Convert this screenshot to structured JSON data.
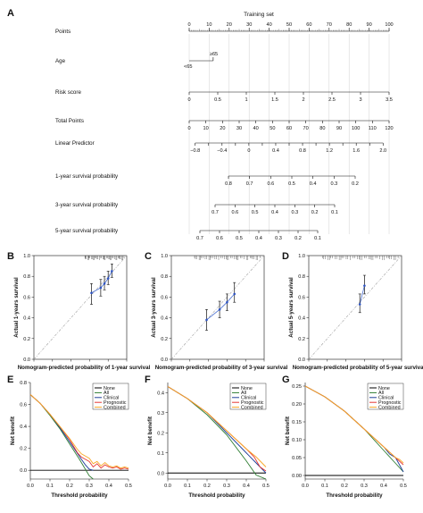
{
  "panels": [
    "A",
    "B",
    "C",
    "D",
    "E",
    "F",
    "G"
  ],
  "chart_data": [
    {
      "panel": "A",
      "type": "nomogram",
      "title": "Training set",
      "rows": [
        {
          "label": "Points",
          "ticks": [
            0,
            10,
            20,
            30,
            40,
            50,
            60,
            70,
            80,
            90,
            100
          ],
          "range": [
            0,
            100
          ],
          "minor": 1
        },
        {
          "label": "Age",
          "categories": [
            {
              "name": "<65",
              "points": 0
            },
            {
              "name": "≥65",
              "points": 12
            }
          ]
        },
        {
          "label": "Risk score",
          "ticks": [
            0,
            0.5,
            1,
            1.5,
            2,
            2.5,
            3,
            3.5
          ],
          "range": [
            0,
            3.5
          ],
          "points_range": [
            0,
            100
          ]
        },
        {
          "label": "Total Points",
          "ticks": [
            0,
            10,
            20,
            30,
            40,
            50,
            60,
            70,
            80,
            90,
            100,
            110,
            120
          ],
          "range": [
            0,
            120
          ]
        },
        {
          "label": "Linear Predictor",
          "ticks": [
            -0.8,
            -0.6,
            -0.4,
            -0.2,
            0,
            0.2,
            0.4,
            0.6,
            0.8,
            1,
            1.2,
            1.4,
            1.6,
            1.8,
            2
          ],
          "tick_labels": [
            "−0.8",
            "",
            "−0.4",
            "",
            "0",
            "",
            "0.4",
            "",
            "0.8",
            "",
            "1.2",
            "",
            "1.6",
            "",
            "2.0"
          ],
          "range": [
            -0.8,
            2.0
          ]
        },
        {
          "label": "1-year survival probability",
          "ticks": [
            0.8,
            0.7,
            0.6,
            0.5,
            0.4,
            0.3,
            0.2
          ],
          "range": [
            0.8,
            0.2
          ]
        },
        {
          "label": "3-year survival probability",
          "ticks": [
            0.7,
            0.6,
            0.5,
            0.4,
            0.3,
            0.2,
            0.1
          ],
          "range": [
            0.7,
            0.1
          ]
        },
        {
          "label": "5-year survival probability",
          "ticks": [
            0.7,
            0.6,
            0.5,
            0.4,
            0.3,
            0.2,
            0.1
          ],
          "range": [
            0.7,
            0.1
          ]
        }
      ]
    },
    {
      "panel": "B",
      "type": "scatter",
      "xlabel": "Nomogram-predicted probability of 1-year survival",
      "ylabel": "Actual 1-years survival",
      "xlim": [
        0,
        1
      ],
      "ylim": [
        0,
        1
      ],
      "xticks": [
        0,
        0.2,
        0.4,
        0.6,
        0.8,
        1.0
      ],
      "yticks": [
        0,
        0.2,
        0.4,
        0.6,
        0.8,
        1.0
      ],
      "tick_labels": [
        "0.0",
        "0.2",
        "0.4",
        "0.6",
        "0.8",
        "1.0"
      ],
      "x": [
        0.62,
        0.72,
        0.76,
        0.8,
        0.84
      ],
      "y": [
        0.64,
        0.69,
        0.73,
        0.78,
        0.85
      ],
      "err_low": [
        0.53,
        0.61,
        0.67,
        0.72,
        0.79
      ],
      "err_high": [
        0.73,
        0.77,
        0.8,
        0.85,
        0.92
      ],
      "rug_range": [
        0.55,
        0.98
      ]
    },
    {
      "panel": "C",
      "type": "scatter",
      "xlabel": "Nomogram-predicted probability of 3-year survival",
      "ylabel": "Actual 3-years survival",
      "xlim": [
        0,
        1
      ],
      "ylim": [
        0,
        1
      ],
      "xticks": [
        0,
        0.2,
        0.4,
        0.6,
        0.8,
        1.0
      ],
      "yticks": [
        0,
        0.2,
        0.4,
        0.6,
        0.8,
        1.0
      ],
      "tick_labels": [
        "0.0",
        "0.2",
        "0.4",
        "0.6",
        "0.8",
        "1.0"
      ],
      "x": [
        0.38,
        0.52,
        0.6,
        0.68
      ],
      "y": [
        0.38,
        0.48,
        0.55,
        0.63
      ],
      "err_low": [
        0.28,
        0.4,
        0.47,
        0.55
      ],
      "err_high": [
        0.48,
        0.56,
        0.63,
        0.74
      ],
      "rug_range": [
        0.25,
        0.97
      ]
    },
    {
      "panel": "D",
      "type": "scatter",
      "xlabel": "Nomogram-predicted probability of 5-year survival",
      "ylabel": "Actual 5-years survival",
      "xlim": [
        0,
        1
      ],
      "ylim": [
        0,
        1
      ],
      "xticks": [
        0,
        0.2,
        0.4,
        0.6,
        0.8,
        1.0
      ],
      "yticks": [
        0,
        0.2,
        0.4,
        0.6,
        0.8,
        1.0
      ],
      "tick_labels": [
        "0.0",
        "0.2",
        "0.4",
        "0.6",
        "0.8",
        "1.0"
      ],
      "x": [
        0.55,
        0.6
      ],
      "y": [
        0.53,
        0.71
      ],
      "err_low": [
        0.45,
        0.63
      ],
      "err_high": [
        0.63,
        0.81
      ],
      "rug_range": [
        0.15,
        0.98
      ]
    },
    {
      "panel": "E",
      "type": "line",
      "xlabel": "Threshold probability",
      "ylabel": "Net benefit",
      "xlim": [
        0,
        0.5
      ],
      "ylim": [
        -0.08,
        0.8
      ],
      "xticks": [
        0,
        0.1,
        0.2,
        0.3,
        0.4,
        0.5
      ],
      "xtick_labels": [
        "0.0",
        "0.1",
        "0.2",
        "0.3",
        "0.4",
        "0.5"
      ],
      "yticks": [
        0,
        0.2,
        0.4,
        0.6,
        0.8
      ],
      "ytick_labels": [
        "0.0",
        "0.2",
        "0.4",
        "0.6",
        "0.8"
      ],
      "series": [
        {
          "name": "None",
          "color": "#000000",
          "x": [
            0,
            0.5
          ],
          "y": [
            0,
            0
          ]
        },
        {
          "name": "All",
          "color": "#2e7d32",
          "x": [
            0,
            0.05,
            0.1,
            0.15,
            0.2,
            0.25,
            0.3,
            0.32
          ],
          "y": [
            0.69,
            0.61,
            0.5,
            0.38,
            0.24,
            0.1,
            -0.05,
            -0.08
          ]
        },
        {
          "name": "Clinical",
          "color": "#1f3e9a",
          "x": [
            0,
            0.05,
            0.1,
            0.15,
            0.2,
            0.23,
            0.26,
            0.28,
            0.3,
            0.32
          ],
          "y": [
            0.69,
            0.61,
            0.51,
            0.39,
            0.26,
            0.18,
            0.1,
            0.05,
            0.01,
            0
          ]
        },
        {
          "name": "Prognostic",
          "color": "#e53935",
          "x": [
            0,
            0.05,
            0.1,
            0.15,
            0.2,
            0.22,
            0.24,
            0.26,
            0.28,
            0.3,
            0.32,
            0.34,
            0.36,
            0.38,
            0.4,
            0.42,
            0.44,
            0.46,
            0.48,
            0.5
          ],
          "y": [
            0.69,
            0.61,
            0.51,
            0.4,
            0.28,
            0.22,
            0.16,
            0.12,
            0.1,
            0.08,
            0.03,
            0.06,
            0.02,
            0.05,
            0.03,
            0.02,
            0.03,
            0.01,
            0.02,
            0.01
          ]
        },
        {
          "name": "Combined",
          "color": "#f9a825",
          "x": [
            0,
            0.05,
            0.1,
            0.15,
            0.2,
            0.22,
            0.24,
            0.26,
            0.28,
            0.3,
            0.32,
            0.34,
            0.36,
            0.38,
            0.4,
            0.42,
            0.44,
            0.46,
            0.48,
            0.5
          ],
          "y": [
            0.69,
            0.61,
            0.51,
            0.4,
            0.29,
            0.24,
            0.19,
            0.15,
            0.13,
            0.11,
            0.06,
            0.08,
            0.04,
            0.07,
            0.04,
            0.03,
            0.04,
            0.02,
            0.03,
            0.02
          ]
        }
      ]
    },
    {
      "panel": "F",
      "type": "line",
      "xlabel": "Threshold probability",
      "ylabel": "Net benefit",
      "xlim": [
        0,
        0.5
      ],
      "ylim": [
        -0.03,
        0.45
      ],
      "xticks": [
        0,
        0.1,
        0.2,
        0.3,
        0.4,
        0.5
      ],
      "xtick_labels": [
        "0.0",
        "0.1",
        "0.2",
        "0.3",
        "0.4",
        "0.5"
      ],
      "yticks": [
        0,
        0.1,
        0.2,
        0.3,
        0.4
      ],
      "ytick_labels": [
        "0.0",
        "0.1",
        "0.2",
        "0.3",
        "0.4"
      ],
      "series": [
        {
          "name": "None",
          "color": "#000000",
          "x": [
            0,
            0.5
          ],
          "y": [
            0,
            0
          ]
        },
        {
          "name": "All",
          "color": "#2e7d32",
          "x": [
            0,
            0.1,
            0.2,
            0.3,
            0.4,
            0.45,
            0.5
          ],
          "y": [
            0.43,
            0.37,
            0.29,
            0.19,
            0.06,
            -0.01,
            -0.03
          ]
        },
        {
          "name": "Clinical",
          "color": "#1f3e9a",
          "x": [
            0,
            0.1,
            0.2,
            0.3,
            0.4,
            0.45,
            0.48,
            0.5
          ],
          "y": [
            0.43,
            0.37,
            0.3,
            0.2,
            0.1,
            0.05,
            0.02,
            0
          ]
        },
        {
          "name": "Prognostic",
          "color": "#e53935",
          "x": [
            0,
            0.1,
            0.2,
            0.3,
            0.4,
            0.44,
            0.47,
            0.5
          ],
          "y": [
            0.43,
            0.37,
            0.3,
            0.21,
            0.12,
            0.08,
            0.03,
            0.01
          ]
        },
        {
          "name": "Combined",
          "color": "#f9a825",
          "x": [
            0,
            0.1,
            0.2,
            0.3,
            0.4,
            0.45,
            0.48,
            0.5
          ],
          "y": [
            0.43,
            0.37,
            0.3,
            0.21,
            0.12,
            0.08,
            0.05,
            0.03
          ]
        }
      ]
    },
    {
      "panel": "G",
      "type": "line",
      "xlabel": "Threshold probability",
      "ylabel": "Net benefit",
      "xlim": [
        0,
        0.5
      ],
      "ylim": [
        -0.01,
        0.26
      ],
      "xticks": [
        0,
        0.1,
        0.2,
        0.3,
        0.4,
        0.5
      ],
      "xtick_labels": [
        "0.0",
        "0.1",
        "0.2",
        "0.3",
        "0.4",
        "0.5"
      ],
      "yticks": [
        0,
        0.05,
        0.1,
        0.15,
        0.2,
        0.25
      ],
      "ytick_labels": [
        "0.00",
        "0.05",
        "0.10",
        "0.15",
        "0.20",
        "0.25"
      ],
      "series": [
        {
          "name": "None",
          "color": "#000000",
          "x": [
            0,
            0.5
          ],
          "y": [
            0,
            0
          ]
        },
        {
          "name": "All",
          "color": "#2e7d32",
          "x": [
            0,
            0.1,
            0.2,
            0.3,
            0.4,
            0.45,
            0.5
          ],
          "y": [
            0.25,
            0.22,
            0.18,
            0.13,
            0.07,
            0.04,
            0.01
          ]
        },
        {
          "name": "Clinical",
          "color": "#1f3e9a",
          "x": [
            0,
            0.1,
            0.2,
            0.3,
            0.4,
            0.43,
            0.46,
            0.5
          ],
          "y": [
            0.25,
            0.22,
            0.18,
            0.13,
            0.08,
            0.06,
            0.05,
            0.01
          ]
        },
        {
          "name": "Prognostic",
          "color": "#e53935",
          "x": [
            0,
            0.1,
            0.2,
            0.3,
            0.4,
            0.43,
            0.46,
            0.48,
            0.5
          ],
          "y": [
            0.25,
            0.22,
            0.18,
            0.13,
            0.08,
            0.065,
            0.05,
            0.04,
            0.03
          ]
        },
        {
          "name": "Combined",
          "color": "#f9a825",
          "x": [
            0,
            0.1,
            0.2,
            0.3,
            0.4,
            0.43,
            0.46,
            0.48,
            0.5
          ],
          "y": [
            0.25,
            0.22,
            0.18,
            0.13,
            0.08,
            0.065,
            0.05,
            0.045,
            0.035
          ]
        }
      ]
    }
  ]
}
